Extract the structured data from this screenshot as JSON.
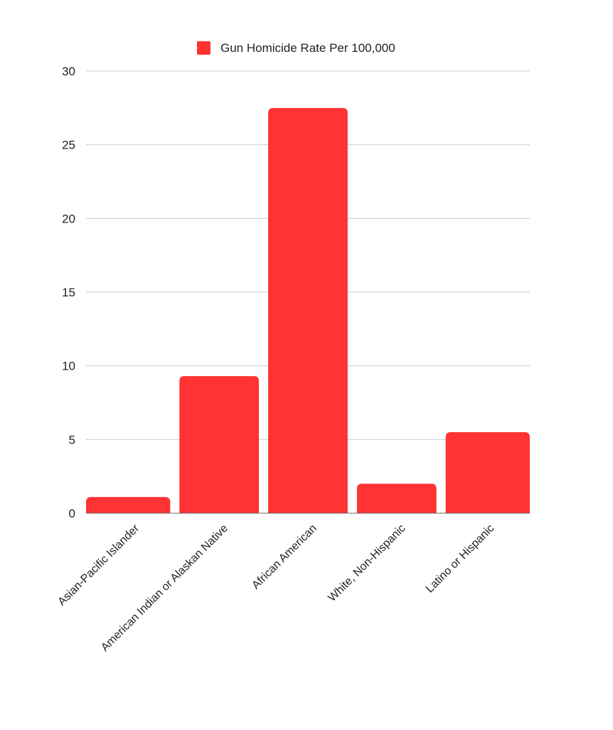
{
  "chart_data": {
    "type": "bar",
    "categories": [
      "Asian-Pacific Islander",
      "American Indian or Alaskan Native",
      "African American",
      "White, Non-Hispanic",
      "Latino or Hispanic"
    ],
    "series": [
      {
        "name": "Gun Homicide Rate Per 100,000",
        "values": [
          1.1,
          9.3,
          27.5,
          2.0,
          5.5
        ],
        "color": "#ff3333"
      }
    ],
    "ylim": [
      0,
      30
    ],
    "yticks": [
      0,
      5,
      10,
      15,
      20,
      25,
      30
    ],
    "grid": true,
    "legend_position": "top-center"
  }
}
